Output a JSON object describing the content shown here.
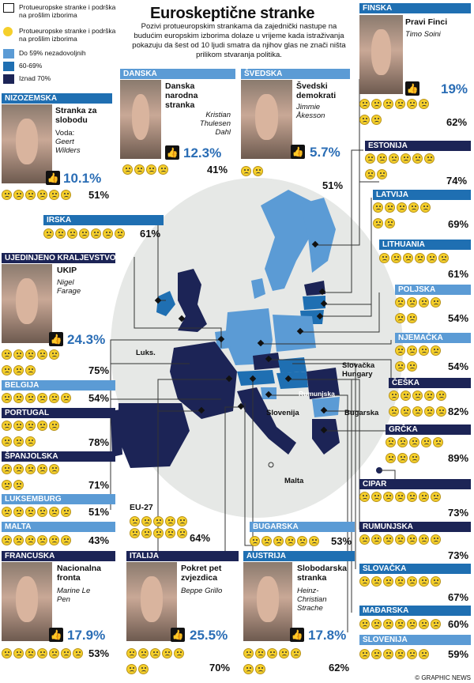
{
  "title": "Euroskeptične stranke",
  "intro": "Pozivi protueuropskim strankama da zajednički nastupe na budućim europskim izborima dolaze u vrijeme kada istraživanja pokazuju da šest od 10 ljudi smatra da njihov glas ne znači ništa prilikom stvaranja politika.",
  "legend": {
    "items": [
      {
        "label": "Protueuropske stranke i podrška na prošlim izborima",
        "kind": "thumb"
      },
      {
        "label": "Protueuropske stranke i podrška na prošlim izborima",
        "kind": "face"
      },
      {
        "label": "Do 59% nezadovoljnih",
        "color": "#5b9bd5"
      },
      {
        "label": "60-69%",
        "color": "#1f6fb2"
      },
      {
        "label": "Iznad 70%",
        "color": "#1c2456"
      }
    ]
  },
  "parties": {
    "finska": {
      "country": "FINSKA",
      "party": "Pravi Finci",
      "leader": "Timo Soini",
      "support": "19%",
      "dissatisfied": "62%"
    },
    "danska": {
      "country": "DANSKA",
      "party": "Danska narodna stranka",
      "leader": "Kristian Thulesen Dahl",
      "support": "12.3%",
      "dissatisfied": "41%"
    },
    "svedska": {
      "country": "ŠVEDSKA",
      "party": "Švedski demokrati",
      "leader": "Jimmie Åkesson",
      "support": "5.7%",
      "dissatisfied": "51%"
    },
    "nizozemska": {
      "country": "NIZOZEMSKA",
      "party": "Stranka za slobodu",
      "leader_prefix": "Voda:",
      "leader": "Geert Wilders",
      "support": "10.1%",
      "dissatisfied": "51%"
    },
    "uk": {
      "country": "UJEDINJENO KRALJEVSTVO",
      "party": "UKIP",
      "leader": "Nigel Farage",
      "support": "24.3%",
      "dissatisfied": "75%"
    },
    "francuska": {
      "country": "FRANCUSKA",
      "party": "Nacionalna fronta",
      "leader": "Marine Le Pen",
      "support": "17.9%",
      "dissatisfied": "53%"
    },
    "italija": {
      "country": "ITALIJA",
      "party": "Pokret pet zvjezdica",
      "leader": "Beppe Grillo",
      "support": "25.5%",
      "dissatisfied": "70%"
    },
    "austrija": {
      "country": "AUSTRIJA",
      "party": "Slobodarska stranka",
      "leader": "Heinz-Christian Strache",
      "support": "17.8%",
      "dissatisfied": "62%"
    }
  },
  "countries": [
    {
      "key": "irska",
      "name": "IRSKA",
      "pct": "61%",
      "color": "#1f6fb2"
    },
    {
      "key": "belgija",
      "name": "BELGIJA",
      "pct": "54%",
      "color": "#5b9bd5"
    },
    {
      "key": "portugal",
      "name": "PORTUGAL",
      "pct": "78%",
      "color": "#1c2456"
    },
    {
      "key": "spanjolska",
      "name": "ŠPANJOLSKA",
      "pct": "71%",
      "color": "#1c2456"
    },
    {
      "key": "luksemburg",
      "name": "LUKSEMBURG",
      "pct": "51%",
      "color": "#5b9bd5"
    },
    {
      "key": "malta",
      "name": "MALTA",
      "pct": "43%",
      "color": "#5b9bd5"
    },
    {
      "key": "estonija",
      "name": "ESTONIJA",
      "pct": "74%",
      "color": "#1c2456"
    },
    {
      "key": "latvija",
      "name": "LATVIJA",
      "pct": "69%",
      "color": "#1f6fb2"
    },
    {
      "key": "lithuania",
      "name": "LITHUANIA",
      "pct": "61%",
      "color": "#1f6fb2"
    },
    {
      "key": "poljska",
      "name": "POLJSKA",
      "pct": "54%",
      "color": "#5b9bd5"
    },
    {
      "key": "njemacka",
      "name": "NJEMAČKA",
      "pct": "54%",
      "color": "#5b9bd5"
    },
    {
      "key": "ceska",
      "name": "ČEŠKA",
      "pct": "82%",
      "color": "#1c2456"
    },
    {
      "key": "grcka",
      "name": "GRČKA",
      "pct": "89%",
      "color": "#1c2456"
    },
    {
      "key": "cipar",
      "name": "CIPAR",
      "pct": "73%",
      "color": "#1c2456"
    },
    {
      "key": "rumunjska",
      "name": "RUMUNJSKA",
      "pct": "73%",
      "color": "#1c2456"
    },
    {
      "key": "slovacka",
      "name": "SLOVAČKA",
      "pct": "67%",
      "color": "#1f6fb2"
    },
    {
      "key": "madarska",
      "name": "MAĐARSKA",
      "pct": "60%",
      "color": "#1f6fb2"
    },
    {
      "key": "slovenija",
      "name": "SLOVENIJA",
      "pct": "59%",
      "color": "#5b9bd5"
    },
    {
      "key": "bugarska",
      "name": "BUGARSKA",
      "pct": "53%",
      "color": "#5b9bd5"
    }
  ],
  "eu27": {
    "label": "EU-27",
    "pct": "64%"
  },
  "map_labels": {
    "luks": "Luks.",
    "slovacka_hungary": "Slovačka\nHungary",
    "rumunjska": "Rumunjska",
    "slovenija": "Slovenija",
    "bugarska": "Bugarska",
    "malta": "Malta"
  },
  "credit": "© GRAPHIC NEWS",
  "colors": {
    "low": "#5b9bd5",
    "mid": "#1f6fb2",
    "high": "#1c2456",
    "face": "#f5cf2b"
  }
}
